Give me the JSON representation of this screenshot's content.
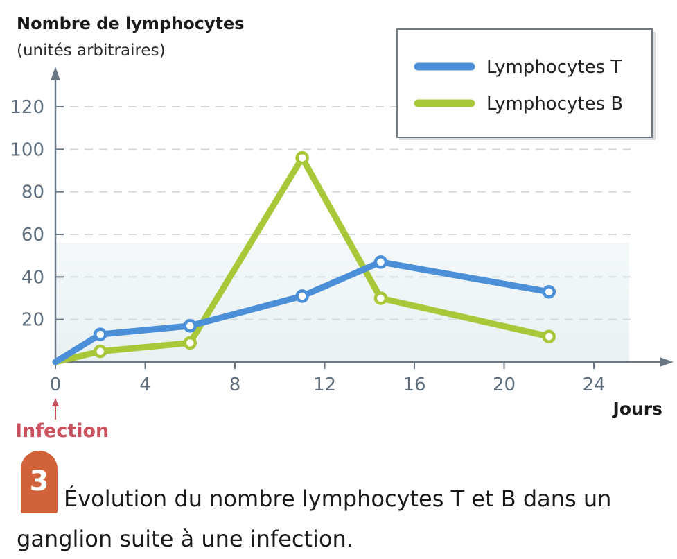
{
  "chart_data": {
    "type": "line",
    "ylabel": "Nombre de lymphocytes",
    "ylabel_unit": "(unités arbitraires)",
    "xlabel": "Jours",
    "xlim": [
      0,
      24
    ],
    "ylim": [
      0,
      120
    ],
    "xticks": [
      "0",
      "4",
      "8",
      "12",
      "16",
      "20",
      "24"
    ],
    "yticks": [
      "20",
      "40",
      "60",
      "80",
      "100",
      "120"
    ],
    "grid": "horizontal dashed",
    "legend_position": "top-right",
    "series": [
      {
        "name": "Lymphocytes T",
        "color": "#4a8fd8",
        "x": [
          0,
          2,
          6,
          11,
          14.5,
          22
        ],
        "y": [
          0,
          13,
          17,
          31,
          47,
          33
        ]
      },
      {
        "name": "Lymphocytes B",
        "color": "#a8c83a",
        "x": [
          0,
          2,
          6,
          11,
          14.5,
          22
        ],
        "y": [
          0,
          5,
          9,
          96,
          30,
          12
        ]
      }
    ],
    "annotations": [
      {
        "text": "Infection",
        "x": 0,
        "color": "#c9515e"
      }
    ]
  },
  "caption": {
    "number": "3",
    "text": "Évolution du nombre lymphocytes T et B dans un ganglion suite à une infection."
  }
}
